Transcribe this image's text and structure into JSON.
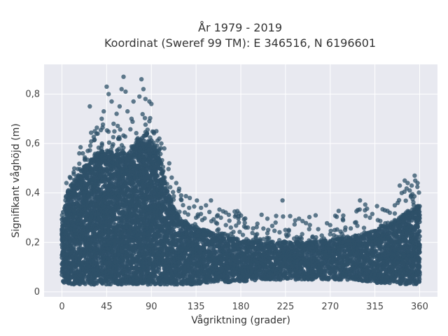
{
  "chart_data": {
    "type": "scatter",
    "title_line1": "År 1979 - 2019",
    "title_line2": "Koordinat (Sweref 99 TM): E 346516, N 6196601",
    "xlabel": "Vågriktning (grader)",
    "ylabel": "Signifikant våghöjd (m)",
    "xlim": [
      -18,
      378
    ],
    "ylim": [
      -0.02,
      0.92
    ],
    "xticks": [
      0,
      45,
      90,
      135,
      180,
      225,
      270,
      315,
      360
    ],
    "yticks": [
      0,
      0.2,
      0.4,
      0.6,
      0.8
    ],
    "ytick_labels": [
      "0",
      "0,2",
      "0,4",
      "0,6",
      "0,8"
    ],
    "grid": true,
    "colors": {
      "marker": "#2e5068",
      "plot_bg": "#e8e9f0",
      "grid": "#ffffff"
    },
    "envelope": [
      {
        "x": 0,
        "low": 0.04,
        "high": 0.3
      },
      {
        "x": 5,
        "low": 0.03,
        "high": 0.4
      },
      {
        "x": 15,
        "low": 0.03,
        "high": 0.46
      },
      {
        "x": 25,
        "low": 0.03,
        "high": 0.52
      },
      {
        "x": 35,
        "low": 0.03,
        "high": 0.56
      },
      {
        "x": 45,
        "low": 0.03,
        "high": 0.57
      },
      {
        "x": 55,
        "low": 0.03,
        "high": 0.56
      },
      {
        "x": 65,
        "low": 0.03,
        "high": 0.56
      },
      {
        "x": 75,
        "low": 0.03,
        "high": 0.6
      },
      {
        "x": 85,
        "low": 0.03,
        "high": 0.65
      },
      {
        "x": 95,
        "low": 0.03,
        "high": 0.58
      },
      {
        "x": 105,
        "low": 0.03,
        "high": 0.42
      },
      {
        "x": 115,
        "low": 0.03,
        "high": 0.32
      },
      {
        "x": 125,
        "low": 0.03,
        "high": 0.28
      },
      {
        "x": 135,
        "low": 0.03,
        "high": 0.26
      },
      {
        "x": 150,
        "low": 0.04,
        "high": 0.24
      },
      {
        "x": 165,
        "low": 0.04,
        "high": 0.22
      },
      {
        "x": 180,
        "low": 0.04,
        "high": 0.21
      },
      {
        "x": 200,
        "low": 0.05,
        "high": 0.2
      },
      {
        "x": 225,
        "low": 0.05,
        "high": 0.2
      },
      {
        "x": 250,
        "low": 0.05,
        "high": 0.2
      },
      {
        "x": 270,
        "low": 0.05,
        "high": 0.21
      },
      {
        "x": 290,
        "low": 0.05,
        "high": 0.22
      },
      {
        "x": 310,
        "low": 0.04,
        "high": 0.24
      },
      {
        "x": 330,
        "low": 0.03,
        "high": 0.27
      },
      {
        "x": 345,
        "low": 0.03,
        "high": 0.31
      },
      {
        "x": 360,
        "low": 0.03,
        "high": 0.35
      }
    ],
    "outliers": [
      [
        21,
        0.56
      ],
      [
        26,
        0.57
      ],
      [
        28,
        0.75
      ],
      [
        33,
        0.65
      ],
      [
        36,
        0.64
      ],
      [
        40,
        0.7
      ],
      [
        42,
        0.73
      ],
      [
        45,
        0.83
      ],
      [
        47,
        0.8
      ],
      [
        50,
        0.77
      ],
      [
        52,
        0.68
      ],
      [
        55,
        0.72
      ],
      [
        58,
        0.75
      ],
      [
        60,
        0.82
      ],
      [
        62,
        0.87
      ],
      [
        64,
        0.81
      ],
      [
        66,
        0.73
      ],
      [
        70,
        0.7
      ],
      [
        72,
        0.77
      ],
      [
        78,
        0.79
      ],
      [
        80,
        0.86
      ],
      [
        82,
        0.82
      ],
      [
        84,
        0.78
      ],
      [
        88,
        0.77
      ],
      [
        90,
        0.76
      ],
      [
        95,
        0.65
      ],
      [
        98,
        0.62
      ],
      [
        100,
        0.6
      ],
      [
        103,
        0.58
      ],
      [
        108,
        0.52
      ],
      [
        115,
        0.44
      ],
      [
        120,
        0.39
      ],
      [
        128,
        0.34
      ],
      [
        135,
        0.3
      ],
      [
        140,
        0.34
      ],
      [
        145,
        0.35
      ],
      [
        150,
        0.37
      ],
      [
        155,
        0.28
      ],
      [
        160,
        0.3
      ],
      [
        165,
        0.27
      ],
      [
        170,
        0.26
      ],
      [
        178,
        0.28
      ],
      [
        185,
        0.26
      ],
      [
        195,
        0.23
      ],
      [
        215,
        0.28
      ],
      [
        222,
        0.37
      ],
      [
        228,
        0.23
      ],
      [
        240,
        0.22
      ],
      [
        255,
        0.21
      ],
      [
        270,
        0.27
      ],
      [
        285,
        0.25
      ],
      [
        295,
        0.28
      ],
      [
        300,
        0.37
      ],
      [
        305,
        0.33
      ],
      [
        310,
        0.3
      ],
      [
        318,
        0.29
      ],
      [
        325,
        0.33
      ],
      [
        330,
        0.32
      ],
      [
        335,
        0.35
      ],
      [
        338,
        0.36
      ],
      [
        340,
        0.43
      ],
      [
        342,
        0.4
      ],
      [
        345,
        0.45
      ],
      [
        348,
        0.44
      ],
      [
        350,
        0.41
      ],
      [
        352,
        0.43
      ],
      [
        355,
        0.47
      ],
      [
        358,
        0.44
      ]
    ]
  }
}
